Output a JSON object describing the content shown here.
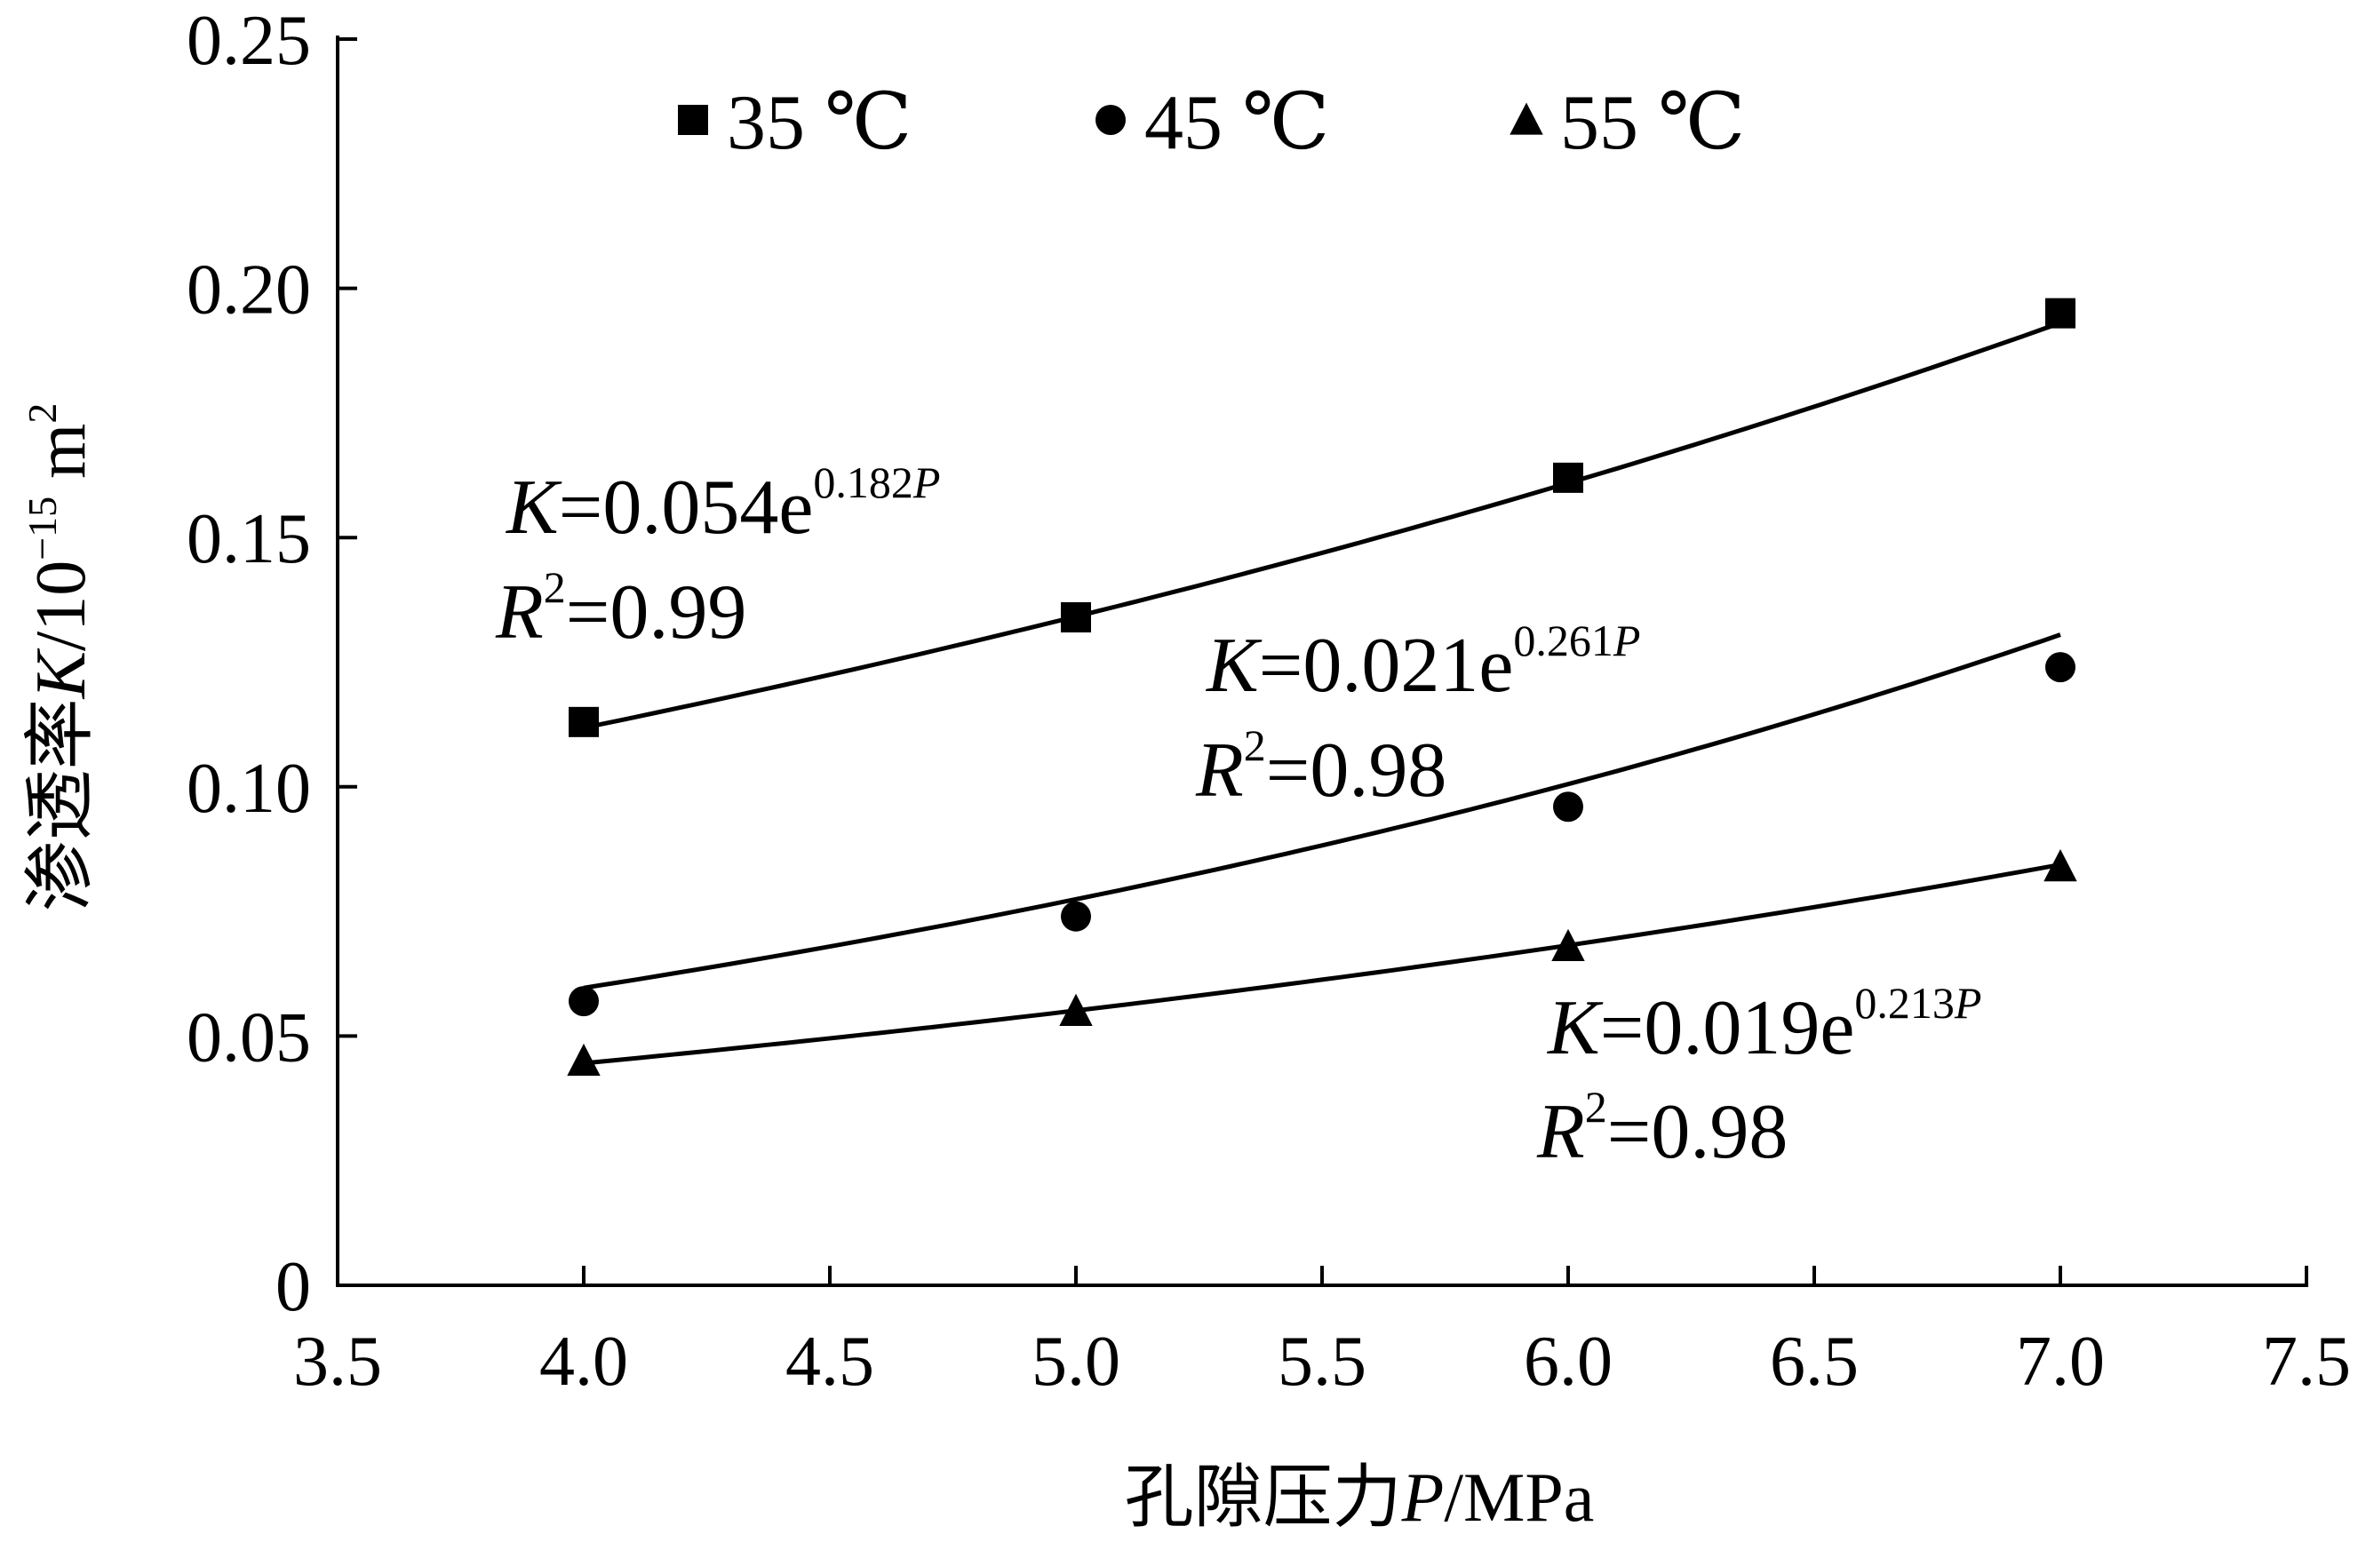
{
  "chart_data": {
    "type": "scatter",
    "title": "",
    "xlabel": {
      "prefix": "孔隙压力",
      "var": "P",
      "unit": "/MPa"
    },
    "ylabel": {
      "prefix": "渗透率",
      "var": "K",
      "unit_pre": "/10",
      "exp": "−15",
      "unit_post": " m",
      "unit_exp": "2"
    },
    "xlim": [
      3.5,
      7.5
    ],
    "ylim": [
      0,
      0.25
    ],
    "xticks": [
      "3.5",
      "4.0",
      "4.5",
      "5.0",
      "5.5",
      "6.0",
      "6.5",
      "7.0",
      "7.5"
    ],
    "yticks": [
      "0",
      "0.05",
      "0.10",
      "0.15",
      "0.20",
      "0.25"
    ],
    "grid": false,
    "legend_position": "top",
    "series": [
      {
        "name": "35 ℃",
        "marker": "square",
        "x": [
          4.0,
          5.0,
          6.0,
          7.0
        ],
        "y": [
          0.113,
          0.134,
          0.162,
          0.195
        ],
        "fit": {
          "a": 0.054,
          "b": 0.182
        },
        "equation": {
          "lhs": "K",
          "body": "=0.054e",
          "exp": "0.182",
          "exp_var": "P"
        },
        "r2": {
          "lhs": "R",
          "sup": "2",
          "body": "=0.99"
        }
      },
      {
        "name": "45 ℃",
        "marker": "circle",
        "x": [
          4.0,
          5.0,
          6.0,
          7.0
        ],
        "y": [
          0.057,
          0.074,
          0.096,
          0.124
        ],
        "fit": {
          "a": 0.021,
          "b": 0.261
        },
        "equation": {
          "lhs": "K",
          "body": "=0.021e",
          "exp": "0.261",
          "exp_var": "P"
        },
        "r2": {
          "lhs": "R",
          "sup": "2",
          "body": "=0.98"
        }
      },
      {
        "name": "55 ℃",
        "marker": "triangle",
        "x": [
          4.0,
          5.0,
          6.0,
          7.0
        ],
        "y": [
          0.045,
          0.055,
          0.068,
          0.084
        ],
        "fit": {
          "a": 0.019,
          "b": 0.213
        },
        "equation": {
          "lhs": "K",
          "body": "=0.019e",
          "exp": "0.213",
          "exp_var": "P"
        },
        "r2": {
          "lhs": "R",
          "sup": "2",
          "body": "=0.98"
        }
      }
    ]
  }
}
